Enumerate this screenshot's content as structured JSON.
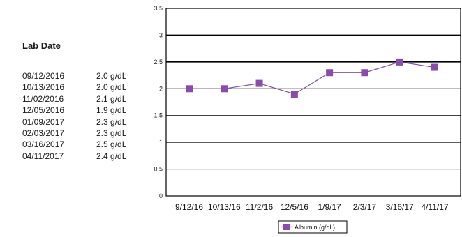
{
  "table": {
    "header": "Lab Date",
    "rows": [
      {
        "date": "09/12/2016",
        "value": "2.0 g/dL"
      },
      {
        "date": "10/13/2016",
        "value": "2.0 g/dL"
      },
      {
        "date": "11/02/2016",
        "value": "2.1 g/dL"
      },
      {
        "date": "12/05/2016",
        "value": "1.9 g/dL"
      },
      {
        "date": "01/09/2017",
        "value": "2.3 g/dL"
      },
      {
        "date": "02/03/2017",
        "value": "2.3 g/dL"
      },
      {
        "date": "03/16/2017",
        "value": "2.5 g/dL"
      },
      {
        "date": "04/11/2017",
        "value": "2.4 g/dL"
      }
    ]
  },
  "chart_data": {
    "type": "line",
    "categories": [
      "9/12/16",
      "10/13/16",
      "11/2/16",
      "12/5/16",
      "1/9/17",
      "2/3/17",
      "3/16/17",
      "4/11/17"
    ],
    "series": [
      {
        "name": "Albumin (g/dl )",
        "values": [
          2.0,
          2.0,
          2.1,
          1.9,
          2.3,
          2.3,
          2.5,
          2.4
        ],
        "color": "#8a4cab"
      }
    ],
    "ylim": [
      0,
      3.5
    ],
    "yticks": [
      "0",
      "0.5",
      "1",
      "1.5",
      "2",
      "2.5",
      "3",
      "3.5"
    ],
    "grid": true,
    "legend": "bottom",
    "title": "",
    "xlabel": "",
    "ylabel": ""
  }
}
